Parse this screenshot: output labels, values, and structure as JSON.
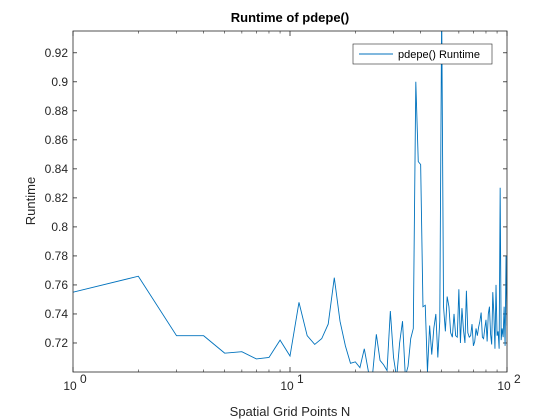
{
  "chart_data": {
    "type": "line",
    "title": "Runtime of pdepe()",
    "xlabel": "Spatial Grid Points N",
    "ylabel": "Runtime",
    "x_scale": "log",
    "xlim": [
      1,
      100
    ],
    "ylim": [
      0.7,
      0.935
    ],
    "x_ticks": [
      1,
      10,
      100
    ],
    "x_tick_labels": [
      "10",
      "10",
      "10"
    ],
    "x_tick_exponents": [
      "0",
      "1",
      "2"
    ],
    "y_ticks": [
      0.72,
      0.74,
      0.76,
      0.78,
      0.8,
      0.82,
      0.84,
      0.86,
      0.88,
      0.9,
      0.92
    ],
    "y_tick_labels": [
      "0.72",
      "0.74",
      "0.76",
      "0.78",
      "0.8",
      "0.82",
      "0.84",
      "0.86",
      "0.88",
      "0.9",
      "0.92"
    ],
    "grid": false,
    "legend_position": "top-right",
    "color": "#0072bd",
    "series": [
      {
        "name": "pdepe() Runtime",
        "x": [
          1,
          2,
          3,
          4,
          5,
          6,
          7,
          8,
          9,
          10,
          11,
          12,
          13,
          14,
          15,
          16,
          17,
          18,
          19,
          20,
          21,
          22,
          23,
          24,
          25,
          26,
          27,
          28,
          29,
          30,
          31,
          32,
          33,
          34,
          35,
          36,
          37,
          38,
          39,
          40,
          41,
          42,
          43,
          44,
          45,
          46,
          47,
          48,
          49,
          50,
          51,
          52,
          53,
          54,
          55,
          56,
          57,
          58,
          59,
          60,
          61,
          62,
          63,
          64,
          65,
          66,
          67,
          68,
          69,
          70,
          71,
          72,
          73,
          74,
          75,
          76,
          77,
          78,
          79,
          80,
          81,
          82,
          83,
          84,
          85,
          86,
          87,
          88,
          89,
          90,
          91,
          92,
          93,
          94,
          95,
          96,
          97,
          98,
          99,
          100
        ],
        "values": [
          0.755,
          0.766,
          0.725,
          0.725,
          0.713,
          0.714,
          0.709,
          0.71,
          0.722,
          0.711,
          0.748,
          0.725,
          0.719,
          0.723,
          0.733,
          0.765,
          0.735,
          0.718,
          0.706,
          0.707,
          0.703,
          0.716,
          0.7,
          0.698,
          0.726,
          0.708,
          0.705,
          0.701,
          0.742,
          0.71,
          0.696,
          0.72,
          0.735,
          0.697,
          0.704,
          0.723,
          0.73,
          0.9,
          0.845,
          0.843,
          0.745,
          0.746,
          0.7,
          0.732,
          0.712,
          0.73,
          0.74,
          0.71,
          0.735,
          0.95,
          0.745,
          0.728,
          0.752,
          0.745,
          0.727,
          0.724,
          0.74,
          0.725,
          0.724,
          0.757,
          0.72,
          0.744,
          0.729,
          0.72,
          0.756,
          0.727,
          0.724,
          0.725,
          0.733,
          0.718,
          0.721,
          0.73,
          0.725,
          0.731,
          0.735,
          0.741,
          0.724,
          0.723,
          0.73,
          0.736,
          0.721,
          0.74,
          0.745,
          0.726,
          0.719,
          0.755,
          0.74,
          0.716,
          0.76,
          0.725,
          0.728,
          0.716,
          0.827,
          0.722,
          0.73,
          0.724,
          0.745,
          0.718,
          0.78,
          0.732
        ]
      }
    ]
  }
}
